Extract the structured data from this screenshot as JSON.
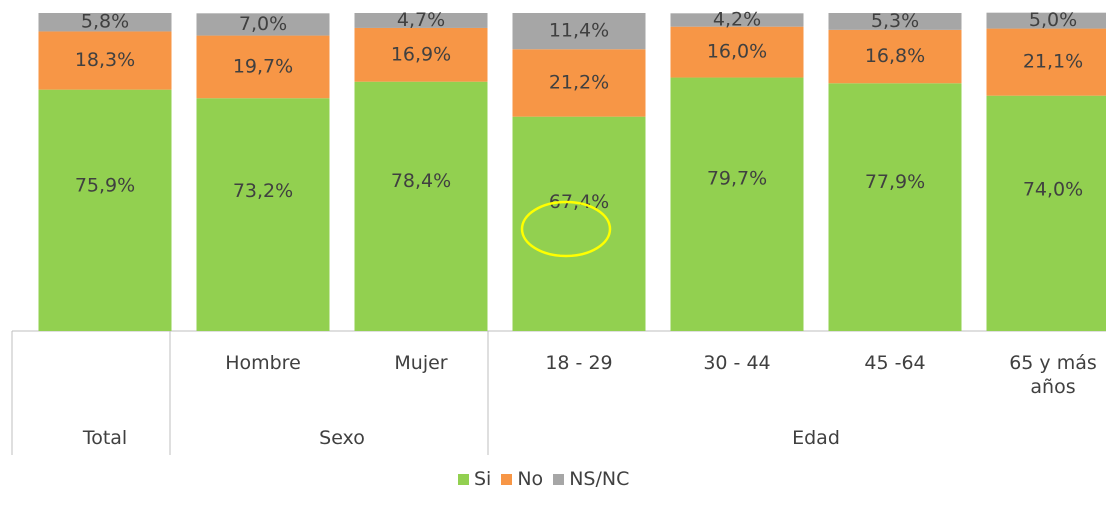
{
  "chart_data": {
    "type": "stacked_bar",
    "categories": [
      null,
      "Hombre",
      "Mujer",
      "18 - 29",
      "30 - 44",
      "45 -64",
      "65 y más años"
    ],
    "groups": [
      {
        "name": "Total",
        "members": 1
      },
      {
        "name": "Sexo",
        "members": 2
      },
      {
        "name": "Edad",
        "members": 4
      }
    ],
    "series": [
      {
        "name": "Si",
        "color": "#92d050",
        "values": [
          75.9,
          73.2,
          78.4,
          67.4,
          79.7,
          77.9,
          74.0
        ],
        "value_labels": [
          "75,9%",
          "73,2%",
          "78,4%",
          "67,4%",
          "79,7%",
          "77,9%",
          "74,0%"
        ]
      },
      {
        "name": "No",
        "color": "#f79646",
        "values": [
          18.3,
          19.7,
          16.9,
          21.2,
          16.0,
          16.8,
          21.1
        ],
        "value_labels": [
          "18,3%",
          "19,7%",
          "16,9%",
          "21,2%",
          "16,0%",
          "16,8%",
          "21,1%"
        ]
      },
      {
        "name": "NS/NC",
        "color": "#a6a6a6",
        "values": [
          5.8,
          7.0,
          4.7,
          11.4,
          4.2,
          5.3,
          5.0
        ],
        "value_labels": [
          "5,8%",
          "7,0%",
          "4,7%",
          "11,4%",
          "4,2%",
          "5,3%",
          "5,0%"
        ]
      }
    ]
  }
}
